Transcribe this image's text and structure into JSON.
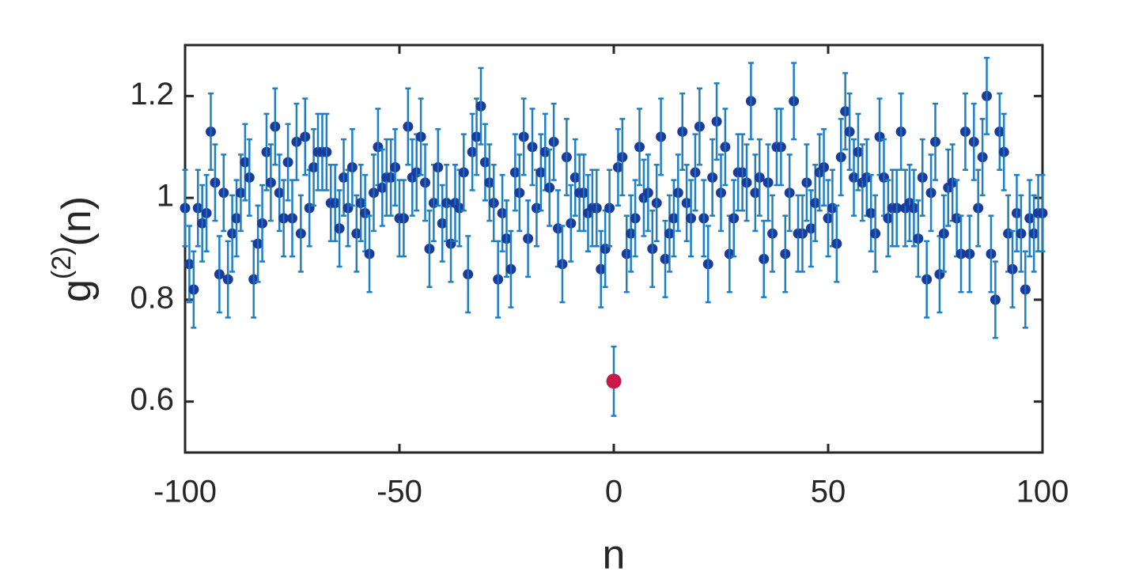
{
  "chart_data": {
    "type": "errorbar-scatter",
    "xlabel": "n",
    "ylabel": {
      "base": "g",
      "sup": "(2)",
      "rest": "(n)"
    },
    "xlim": [
      -100,
      100
    ],
    "ylim": [
      0.5,
      1.3
    ],
    "xticks": [
      -100,
      -50,
      0,
      50,
      100
    ],
    "yticks": [
      0.6,
      0.8,
      1,
      1.2
    ],
    "error_bar_color": "#1f7fc4",
    "series": [
      {
        "color": "#1a3a9c",
        "error": 0.075,
        "x": [
          -100,
          -99,
          -98,
          -97,
          -96,
          -95,
          -94,
          -93,
          -92,
          -91,
          -90,
          -89,
          -88,
          -87,
          -86,
          -85,
          -84,
          -83,
          -82,
          -81,
          -80,
          -79,
          -78,
          -77,
          -76,
          -75,
          -74,
          -73,
          -72,
          -71,
          -70,
          -69,
          -68,
          -67,
          -66,
          -65,
          -64,
          -63,
          -62,
          -61,
          -60,
          -59,
          -58,
          -57,
          -56,
          -55,
          -54,
          -53,
          -52,
          -51,
          -50,
          -49,
          -48,
          -47,
          -46,
          -45,
          -44,
          -43,
          -42,
          -41,
          -40,
          -39,
          -38,
          -37,
          -36,
          -35,
          -34,
          -33,
          -32,
          -31,
          -30,
          -29,
          -28,
          -27,
          -26,
          -25,
          -24,
          -23,
          -22,
          -21,
          -20,
          -19,
          -18,
          -17,
          -16,
          -15,
          -14,
          -13,
          -12,
          -11,
          -10,
          -9,
          -8,
          -7,
          -6,
          -5,
          -4,
          -3,
          -2,
          -1,
          1,
          2,
          3,
          4,
          5,
          6,
          7,
          8,
          9,
          10,
          11,
          12,
          13,
          14,
          15,
          16,
          17,
          18,
          19,
          20,
          21,
          22,
          23,
          24,
          25,
          26,
          27,
          28,
          29,
          30,
          31,
          32,
          33,
          34,
          35,
          36,
          37,
          38,
          39,
          40,
          41,
          42,
          43,
          44,
          45,
          46,
          47,
          48,
          49,
          50,
          51,
          52,
          53,
          54,
          55,
          56,
          57,
          58,
          59,
          60,
          61,
          62,
          63,
          64,
          65,
          66,
          67,
          68,
          69,
          70,
          71,
          72,
          73,
          74,
          75,
          76,
          77,
          78,
          79,
          80,
          81,
          82,
          83,
          84,
          85,
          86,
          87,
          88,
          89,
          90,
          91,
          92,
          93,
          94,
          95,
          96,
          97,
          98,
          99,
          100
        ],
        "values": [
          0.98,
          0.87,
          0.82,
          0.98,
          0.95,
          0.97,
          1.13,
          1.03,
          0.85,
          1.01,
          0.84,
          0.93,
          0.96,
          1.01,
          1.07,
          1.04,
          0.84,
          0.91,
          0.95,
          1.09,
          1.03,
          1.14,
          1.01,
          0.96,
          1.07,
          0.96,
          1.11,
          0.93,
          1.12,
          0.98,
          1.06,
          1.09,
          1.09,
          1.09,
          0.99,
          0.99,
          0.94,
          1.04,
          0.98,
          1.06,
          0.93,
          0.99,
          0.97,
          0.89,
          1.01,
          1.1,
          1.02,
          1.04,
          1.04,
          1.06,
          0.96,
          0.96,
          1.14,
          1.04,
          1.05,
          1.12,
          1.03,
          0.9,
          0.99,
          1.06,
          0.95,
          0.99,
          0.91,
          0.99,
          0.98,
          1.05,
          0.85,
          1.09,
          1.12,
          1.18,
          1.07,
          1.03,
          0.99,
          0.84,
          0.97,
          0.92,
          0.86,
          1.05,
          1.01,
          1.12,
          0.92,
          1.1,
          0.98,
          1.05,
          1.09,
          1.02,
          1.11,
          0.94,
          0.87,
          1.08,
          0.95,
          1.04,
          1.01,
          1.01,
          0.97,
          0.98,
          0.98,
          0.86,
          0.9,
          0.98,
          1.06,
          1.08,
          0.89,
          0.93,
          0.96,
          1.1,
          1.0,
          1.01,
          0.9,
          0.99,
          1.12,
          0.88,
          0.93,
          0.96,
          1.01,
          1.13,
          0.99,
          0.96,
          1.05,
          1.14,
          0.96,
          0.87,
          1.04,
          1.15,
          1.01,
          1.1,
          0.89,
          0.96,
          1.05,
          1.05,
          1.03,
          1.19,
          1.01,
          1.04,
          0.88,
          1.03,
          0.93,
          1.1,
          1.1,
          0.89,
          1.01,
          1.19,
          0.93,
          0.93,
          1.03,
          0.94,
          0.99,
          1.05,
          1.06,
          0.96,
          0.98,
          0.91,
          1.08,
          1.17,
          1.13,
          1.04,
          1.09,
          1.03,
          1.04,
          0.97,
          0.93,
          1.12,
          1.04,
          0.96,
          0.98,
          0.98,
          1.13,
          0.98,
          0.99,
          0.98,
          0.92,
          1.04,
          0.84,
          1.01,
          1.11,
          0.85,
          0.93,
          1.02,
          1.03,
          0.96,
          0.89,
          1.13,
          0.89,
          1.11,
          0.98,
          1.08,
          1.2,
          0.89,
          0.8,
          1.13,
          1.09,
          0.93,
          0.86,
          0.97,
          0.93,
          0.82,
          0.96,
          0.93,
          0.97,
          0.97
        ]
      },
      {
        "color": "#c8174a",
        "error": 0.068,
        "x": [
          0
        ],
        "values": [
          0.64
        ]
      }
    ]
  }
}
